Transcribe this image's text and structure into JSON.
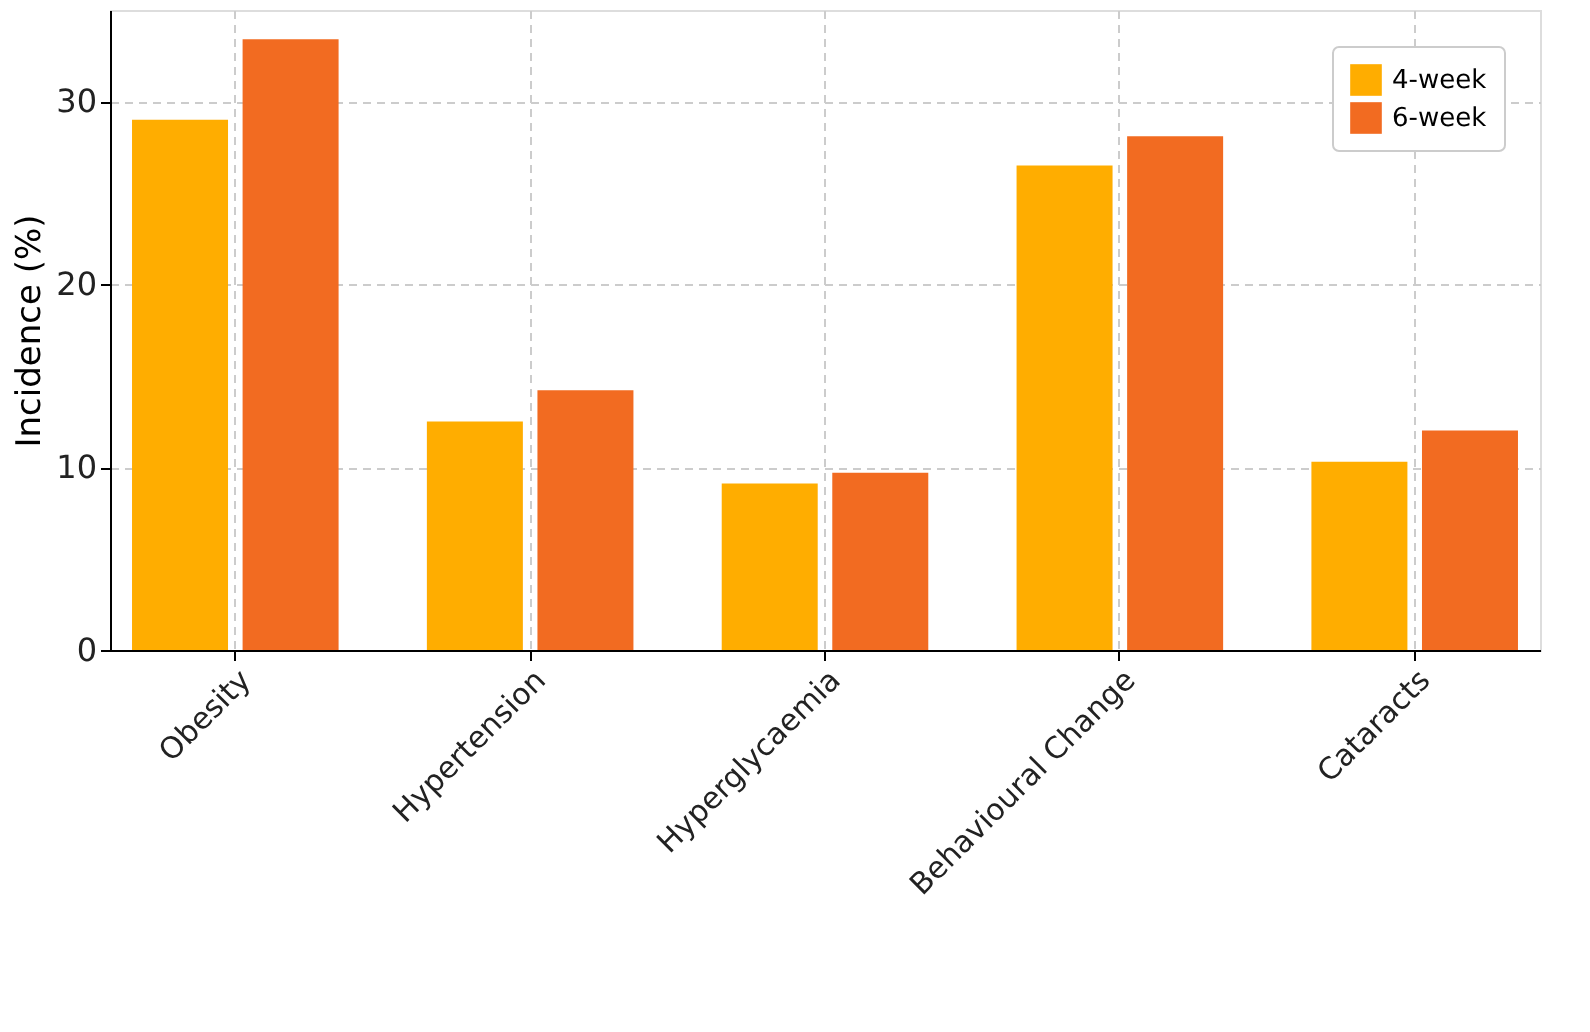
{
  "chart_data": {
    "type": "bar",
    "ylabel": "Incidence (%)",
    "categories": [
      "Obesity",
      "Hypertension",
      "Hyperglycaemia",
      "Behavioural Change",
      "Cataracts"
    ],
    "series": [
      {
        "name": "4-week",
        "color": "#ffad00",
        "values": [
          29.0,
          12.5,
          9.1,
          26.5,
          10.3
        ]
      },
      {
        "name": "6-week",
        "color": "#f26b21",
        "values": [
          33.4,
          14.2,
          9.7,
          28.1,
          12.0
        ]
      }
    ],
    "ylim": [
      0,
      35
    ],
    "yticks": [
      0,
      10,
      20,
      30
    ],
    "grid": true,
    "legend": "top right"
  }
}
